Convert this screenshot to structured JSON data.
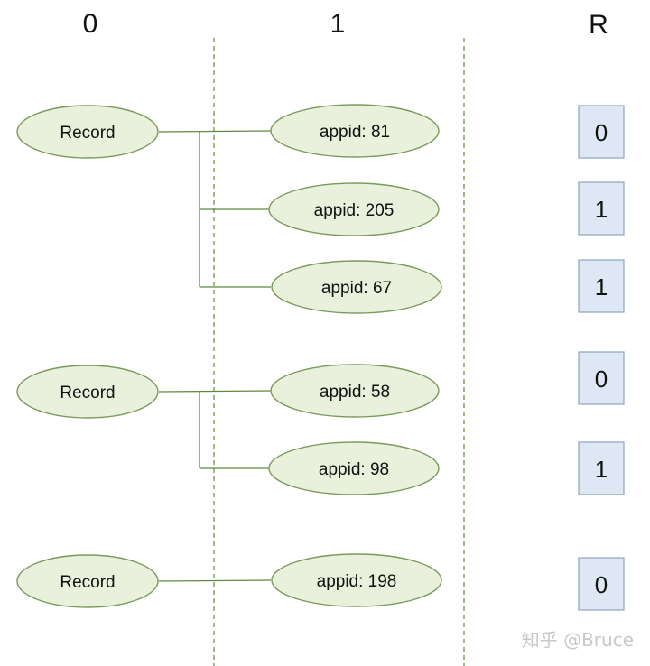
{
  "headers": {
    "level0": "0",
    "level1": "1",
    "r": "R"
  },
  "records": [
    {
      "label": "Record",
      "children": [
        {
          "label": "appid: 81",
          "r": "0"
        },
        {
          "label": "appid: 205",
          "r": "1"
        },
        {
          "label": "appid: 67",
          "r": "1"
        }
      ]
    },
    {
      "label": "Record",
      "children": [
        {
          "label": "appid: 58",
          "r": "0"
        },
        {
          "label": "appid: 98",
          "r": "1"
        }
      ]
    },
    {
      "label": "Record",
      "children": [
        {
          "label": "appid: 198",
          "r": "0"
        }
      ]
    }
  ],
  "watermark": "知乎 @Bruce",
  "colors": {
    "ellipse_fill": "#e9f0dc",
    "ellipse_stroke": "#7a9a5a",
    "connector": "#5f8a3c",
    "dashed": "#5f8a3c",
    "r_box_fill": "#dde8f4",
    "r_box_stroke": "#8fa4bd"
  }
}
